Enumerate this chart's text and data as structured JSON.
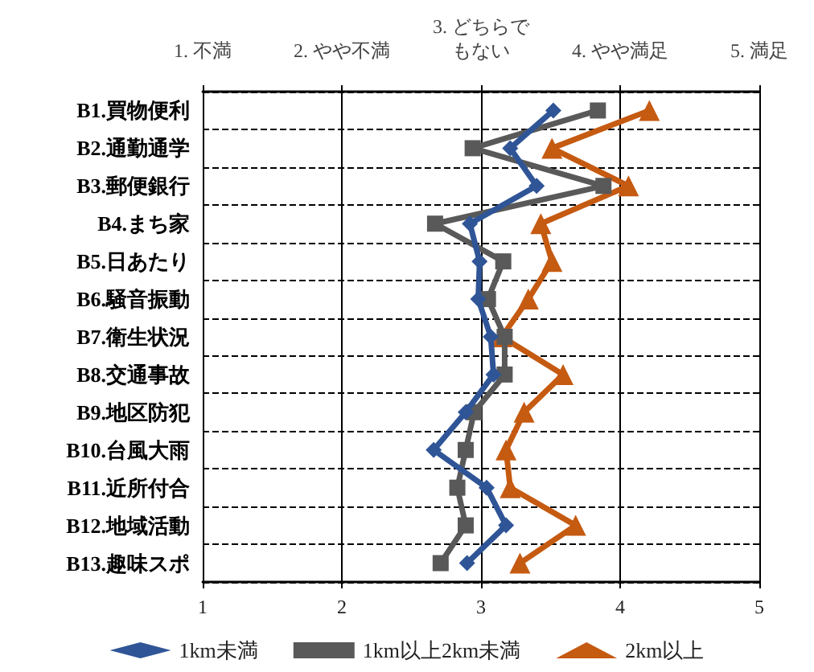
{
  "chart_data": {
    "type": "line",
    "orientation": "horizontal",
    "categories": [
      "B1.買物便利",
      "B2.通勤通学",
      "B3.郵便銀行",
      "B4.まち家",
      "B5.日あたり",
      "B6.騒音振動",
      "B7.衛生状況",
      "B8.交通事故",
      "B9.地区防犯",
      "B10.台風大雨",
      "B11.近所付合",
      "B12.地域活動",
      "B13.趣味スポ"
    ],
    "series": [
      {
        "name": "1km未満",
        "color": "#2f5597",
        "marker": "diamond",
        "values": [
          3.52,
          3.21,
          3.4,
          2.92,
          2.99,
          2.98,
          3.07,
          3.09,
          2.89,
          2.66,
          3.04,
          3.18,
          2.9
        ]
      },
      {
        "name": "1km以上2km未満",
        "color": "#595959",
        "marker": "square",
        "values": [
          3.84,
          2.94,
          3.88,
          2.67,
          3.16,
          3.05,
          3.17,
          3.17,
          2.95,
          2.89,
          2.83,
          2.89,
          2.71
        ]
      },
      {
        "name": "2km以上",
        "color": "#c55a11",
        "marker": "triangle",
        "values": [
          4.21,
          3.51,
          4.06,
          3.43,
          3.51,
          3.34,
          3.15,
          3.59,
          3.31,
          3.18,
          3.21,
          3.68,
          3.28
        ]
      }
    ],
    "xlim": [
      1,
      5
    ],
    "xticks": [
      1,
      2,
      3,
      4,
      5
    ],
    "x2lim": [
      1,
      5
    ],
    "x2ticks": [
      {
        "value": 1,
        "label": "1. 不満"
      },
      {
        "value": 2,
        "label": "2. やや不満"
      },
      {
        "value": 3,
        "label": "3. どちらでもない"
      },
      {
        "value": 4,
        "label": "4. やや満足"
      },
      {
        "value": 5,
        "label": "5. 満足"
      }
    ],
    "grid": true,
    "legend": "bottom",
    "line_style": "solid"
  }
}
